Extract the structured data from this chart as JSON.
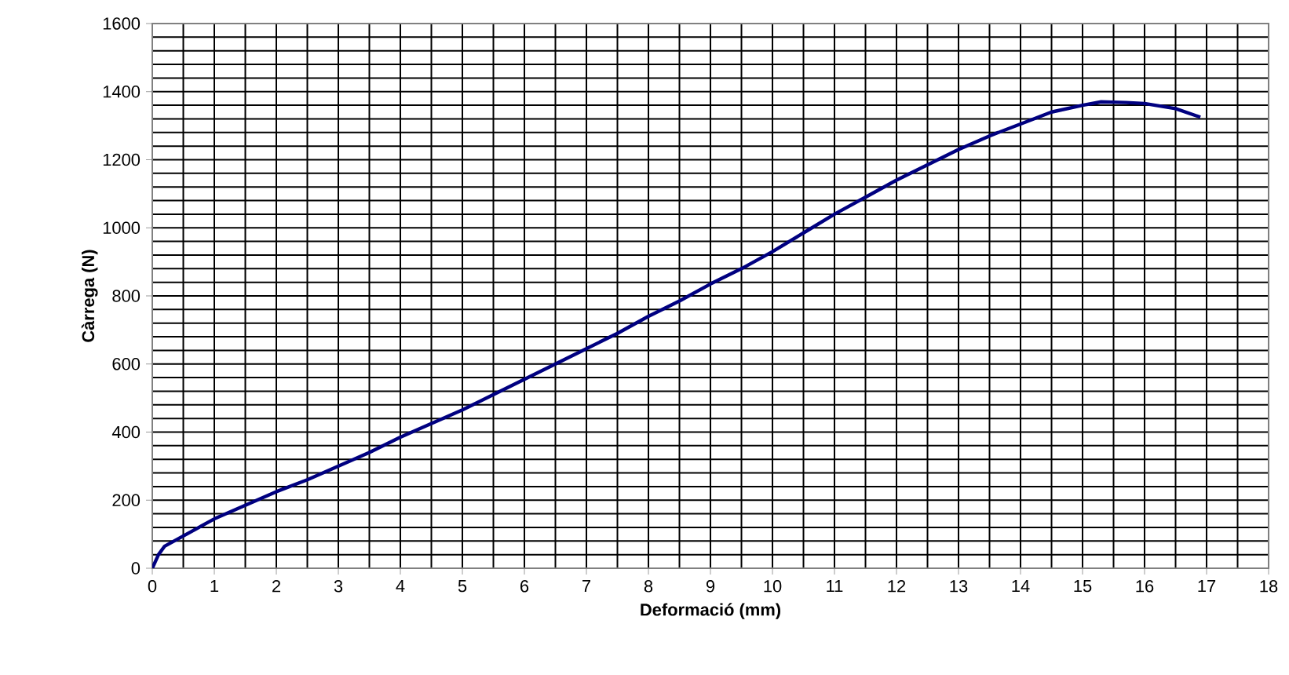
{
  "chart_data": {
    "type": "line",
    "xlabel": "Deformació (mm)",
    "ylabel": "Càrrega (N)",
    "xlim": [
      0,
      18
    ],
    "xticks": [
      0,
      1,
      2,
      3,
      4,
      5,
      6,
      7,
      8,
      9,
      10,
      11,
      12,
      13,
      14,
      15,
      16,
      17,
      18
    ],
    "ylim": [
      0,
      1600
    ],
    "yticks": [
      0,
      200,
      400,
      600,
      800,
      1000,
      1200,
      1400,
      1600
    ],
    "grid": true,
    "marker": "none",
    "line_style": "solid",
    "series": [
      {
        "color": "#000080",
        "x": [
          0,
          0.1,
          0.2,
          0.5,
          1,
          1.5,
          2,
          2.5,
          3,
          3.5,
          4,
          4.5,
          5,
          5.5,
          6,
          6.5,
          7,
          7.5,
          8,
          8.5,
          9,
          9.5,
          10,
          10.5,
          11,
          11.5,
          12,
          12.5,
          13,
          13.5,
          14,
          14.5,
          15,
          15.3,
          15.7,
          16,
          16.5,
          16.9
        ],
        "values": [
          0,
          40,
          65,
          95,
          145,
          185,
          225,
          260,
          300,
          340,
          385,
          425,
          465,
          510,
          555,
          600,
          645,
          690,
          740,
          785,
          835,
          880,
          930,
          985,
          1040,
          1090,
          1140,
          1185,
          1230,
          1270,
          1305,
          1340,
          1360,
          1370,
          1368,
          1365,
          1350,
          1325
        ]
      }
    ]
  }
}
